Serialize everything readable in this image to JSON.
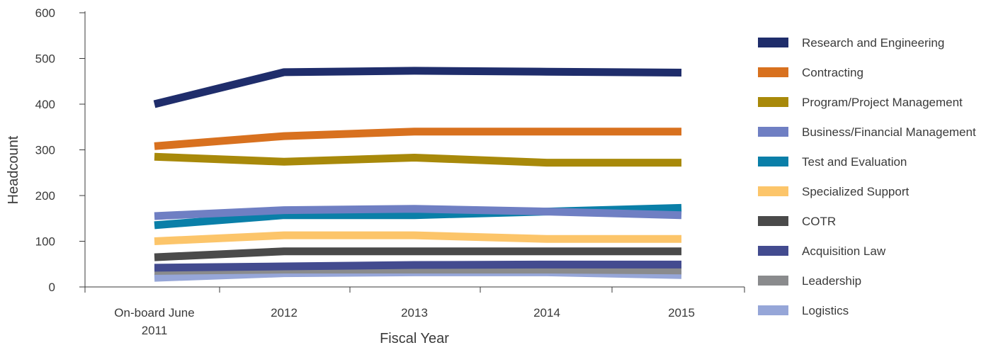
{
  "chart_data": {
    "type": "line",
    "categories": [
      "On-board June 2011",
      "2012",
      "2013",
      "2014",
      "2015"
    ],
    "category_lines": [
      [
        "On-board June",
        "2011"
      ],
      [
        "2012"
      ],
      [
        "2013"
      ],
      [
        "2014"
      ],
      [
        "2015"
      ]
    ],
    "xlabel": "Fiscal Year",
    "ylabel": "Headcount",
    "ylim": [
      0,
      600
    ],
    "yticks": [
      0,
      100,
      200,
      300,
      400,
      500,
      600
    ],
    "grid": false,
    "legend_position": "right",
    "series": [
      {
        "name": "Research and Engineering",
        "color": "#1f2d6b",
        "values": [
          400,
          470,
          473,
          471,
          469
        ]
      },
      {
        "name": "Contracting",
        "color": "#d8711f",
        "values": [
          308,
          330,
          340,
          340,
          340
        ]
      },
      {
        "name": "Program/Project Management",
        "color": "#a8890a",
        "values": [
          285,
          274,
          283,
          272,
          272
        ]
      },
      {
        "name": "Business/Financial Management",
        "color": "#6f7fc3",
        "values": [
          155,
          168,
          171,
          165,
          157
        ]
      },
      {
        "name": "Test and Evaluation",
        "color": "#0a7fa8",
        "values": [
          135,
          157,
          157,
          165,
          173
        ]
      },
      {
        "name": "Specialized Support",
        "color": "#fcc56a",
        "values": [
          100,
          113,
          113,
          105,
          105
        ]
      },
      {
        "name": "COTR",
        "color": "#4a4a4a",
        "values": [
          65,
          78,
          78,
          78,
          78
        ]
      },
      {
        "name": "Acquisition Law",
        "color": "#434b8f",
        "values": [
          42,
          45,
          48,
          49,
          49
        ]
      },
      {
        "name": "Leadership",
        "color": "#8a8b8d",
        "values": [
          35,
          38,
          38,
          38,
          36
        ]
      },
      {
        "name": "Logistics",
        "color": "#96a6d8",
        "values": [
          20,
          30,
          32,
          32,
          26
        ]
      }
    ]
  }
}
